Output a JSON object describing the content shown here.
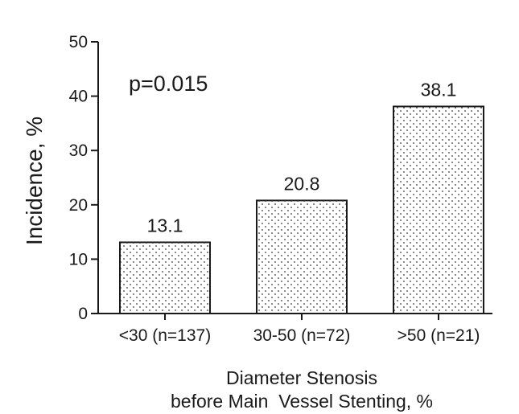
{
  "chart_data": {
    "type": "bar",
    "categories": [
      "<30 (n=137)",
      "30-50 (n=72)",
      ">50 (n=21)"
    ],
    "values": [
      13.1,
      20.8,
      38.1
    ],
    "value_labels": [
      "13.1",
      "20.8",
      "38.1"
    ],
    "title": "",
    "ylabel": "Incidence, %",
    "xlabel_lines": [
      "Diameter Stenosis",
      "before Main  Vessel Stenting, %"
    ],
    "ylim": [
      0,
      50
    ],
    "yticks": [
      0,
      10,
      20,
      30,
      40,
      50
    ],
    "annotation": "p=0.015",
    "grid": false,
    "legend": "none",
    "bar_fill": "dotted",
    "colors": {
      "bar_fill_background": "#ffffff",
      "bar_dot": "#333333",
      "axis": "#1a1a1a"
    }
  }
}
